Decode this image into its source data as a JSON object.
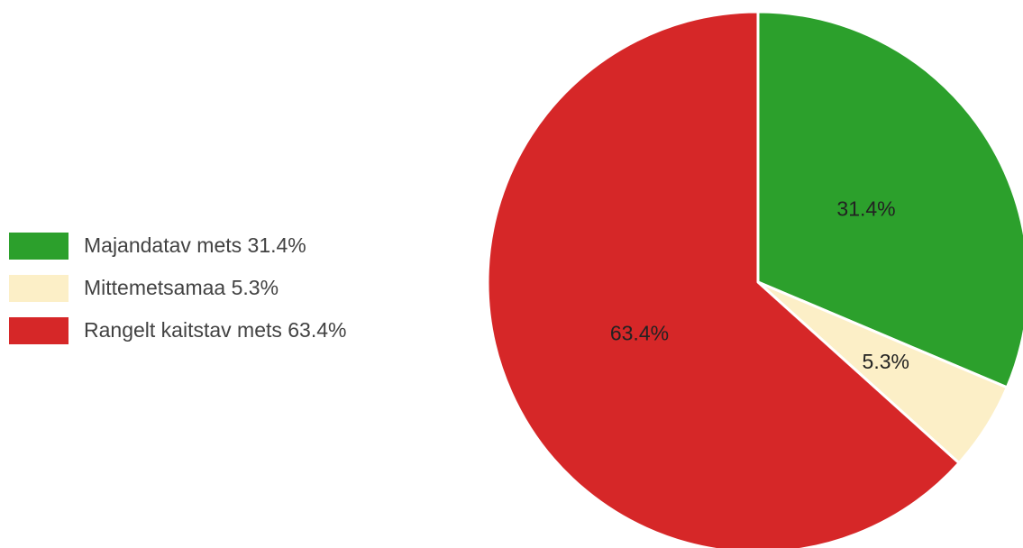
{
  "chart_data": {
    "type": "pie",
    "legend_position": "left",
    "slices": [
      {
        "name": "Majandatav mets",
        "value": 31.4,
        "label": "31.4%",
        "legend_label": "Majandatav mets 31.4%",
        "color": "#2ca02c"
      },
      {
        "name": "Mittemetsamaa",
        "value": 5.3,
        "label": "5.3%",
        "legend_label": "Mittemetsamaa 5.3%",
        "color": "#fcefc7"
      },
      {
        "name": "Rangelt kaitstav mets",
        "value": 63.4,
        "label": "63.4%",
        "legend_label": "Rangelt kaitstav mets 63.4%",
        "color": "#d62728"
      }
    ]
  }
}
